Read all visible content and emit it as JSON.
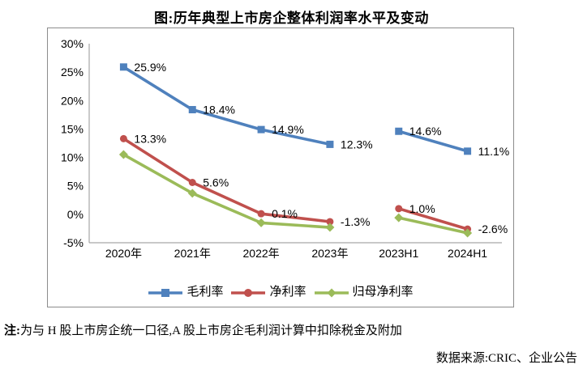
{
  "title": "图:历年典型上市房企整体利润率水平及变动",
  "note": {
    "prefix": "注:",
    "text": "为与 H 股上市房企统一口径,A 股上市房企毛利润计算中扣除税金及附加"
  },
  "source": "数据来源:CRIC、企业公告",
  "chart_data": {
    "type": "line",
    "title": "图:历年典型上市房企整体利润率水平及变动",
    "categories": [
      "2020年",
      "2021年",
      "2022年",
      "2023年",
      "2023H1",
      "2024H1"
    ],
    "series": [
      {
        "name": "毛利率",
        "color": "#4F81BD",
        "marker": "square",
        "values": [
          25.9,
          18.4,
          14.9,
          12.3,
          14.6,
          11.1
        ],
        "labels": [
          "25.9%",
          "18.4%",
          "14.9%",
          "12.3%",
          "14.6%",
          "11.1%"
        ]
      },
      {
        "name": "净利率",
        "color": "#C0504D",
        "marker": "circle",
        "values": [
          13.3,
          5.6,
          0.1,
          -1.3,
          1.0,
          -2.6
        ],
        "labels": [
          "13.3%",
          "5.6%",
          "0.1%",
          "-1.3%",
          "1.0%",
          "-2.6%"
        ]
      },
      {
        "name": "归母净利率",
        "color": "#9BBB59",
        "marker": "diamond",
        "values": [
          10.5,
          3.7,
          -1.5,
          -2.3,
          -0.6,
          -3.3
        ],
        "labels": [
          "",
          "",
          "",
          "",
          "",
          ""
        ]
      }
    ],
    "segments": [
      [
        0,
        3
      ],
      [
        4,
        5
      ]
    ],
    "y_ticks": [
      "30%",
      "25%",
      "20%",
      "15%",
      "10%",
      "5%",
      "0%",
      "-5%"
    ],
    "y_step": 5,
    "ylim": [
      -5,
      30
    ],
    "xlabel": "",
    "ylabel": "",
    "grid": false,
    "legend_position": "bottom-inside",
    "axis_color": "#A6A6A6",
    "border_color": "#8C8C8C",
    "background": "#FFFFFF"
  }
}
